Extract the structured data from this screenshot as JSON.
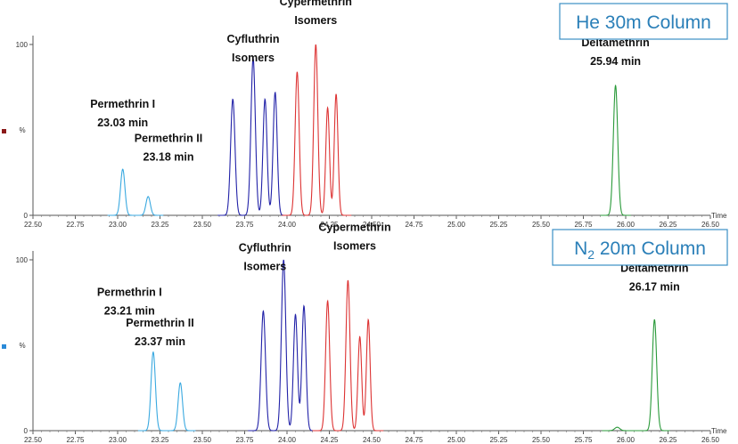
{
  "chart_data": [
    {
      "type": "line",
      "title": "He 30m Column",
      "xlabel": "Time",
      "ylabel": "%",
      "xlim": [
        22.5,
        26.5
      ],
      "ylim": [
        0,
        100
      ],
      "x_ticks": [
        "22.50",
        "22.75",
        "23.00",
        "23.25",
        "23.50",
        "23.75",
        "24.00",
        "24.25",
        "24.50",
        "24.75",
        "25.00",
        "25.25",
        "25.50",
        "25.75",
        "26.00",
        "26.25",
        "26.50"
      ],
      "y_ticks": [
        "0",
        "100"
      ],
      "marker_color": "#8b1a1a",
      "series": [
        {
          "color": "#3aa9e0",
          "peaks": [
            {
              "rt": 23.03,
              "height": 27,
              "width": 0.013
            },
            {
              "rt": 23.18,
              "height": 11,
              "width": 0.013
            }
          ]
        },
        {
          "color": "#2222a8",
          "peaks": [
            {
              "rt": 23.68,
              "height": 68,
              "width": 0.013
            },
            {
              "rt": 23.8,
              "height": 92,
              "width": 0.013
            },
            {
              "rt": 23.87,
              "height": 68,
              "width": 0.012
            },
            {
              "rt": 23.93,
              "height": 72,
              "width": 0.012
            }
          ]
        },
        {
          "color": "#dd3333",
          "peaks": [
            {
              "rt": 24.06,
              "height": 84,
              "width": 0.012
            },
            {
              "rt": 24.17,
              "height": 100,
              "width": 0.012
            },
            {
              "rt": 24.24,
              "height": 63,
              "width": 0.011
            },
            {
              "rt": 24.29,
              "height": 71,
              "width": 0.011
            }
          ]
        },
        {
          "color": "#2a9a3a",
          "peaks": [
            {
              "rt": 25.94,
              "height": 76,
              "width": 0.013
            }
          ]
        }
      ],
      "annotations": [
        {
          "lines": [
            "Permethrin I",
            "23.03 min"
          ],
          "x": 23.03,
          "y": 52
        },
        {
          "lines": [
            "Permethrin II",
            "23.18 min"
          ],
          "x": 23.3,
          "y": 32
        },
        {
          "lines": [
            "Cyfluthrin",
            "Isomers"
          ],
          "x": 23.8,
          "y": 90
        },
        {
          "lines": [
            "Cypermethrin",
            "Isomers"
          ],
          "x": 24.17,
          "y": 112
        },
        {
          "lines": [
            "Deltamethrin",
            "25.94 min"
          ],
          "x": 25.94,
          "y": 88
        }
      ]
    },
    {
      "type": "line",
      "title": "N",
      "title_sub": "2",
      "title_rest": " 20m Column",
      "xlabel": "Time",
      "ylabel": "%",
      "xlim": [
        22.5,
        26.5
      ],
      "ylim": [
        0,
        100
      ],
      "x_ticks": [
        "22.50",
        "22.75",
        "23.00",
        "23.25",
        "23.50",
        "23.75",
        "24.00",
        "24.25",
        "24.50",
        "24.75",
        "25.00",
        "25.25",
        "25.50",
        "25.75",
        "26.00",
        "26.25",
        "26.50"
      ],
      "y_ticks": [
        "0",
        "100"
      ],
      "marker_color": "#2a8ad8",
      "series": [
        {
          "color": "#3aa9e0",
          "peaks": [
            {
              "rt": 23.21,
              "height": 46,
              "width": 0.013
            },
            {
              "rt": 23.37,
              "height": 28,
              "width": 0.013
            }
          ]
        },
        {
          "color": "#2222a8",
          "peaks": [
            {
              "rt": 23.86,
              "height": 70,
              "width": 0.013
            },
            {
              "rt": 23.98,
              "height": 100,
              "width": 0.013
            },
            {
              "rt": 24.05,
              "height": 68,
              "width": 0.012
            },
            {
              "rt": 24.1,
              "height": 73,
              "width": 0.012
            }
          ]
        },
        {
          "color": "#dd3333",
          "peaks": [
            {
              "rt": 24.24,
              "height": 76,
              "width": 0.012
            },
            {
              "rt": 24.36,
              "height": 88,
              "width": 0.012
            },
            {
              "rt": 24.43,
              "height": 55,
              "width": 0.011
            },
            {
              "rt": 24.48,
              "height": 65,
              "width": 0.011
            }
          ]
        },
        {
          "color": "#2a9a3a",
          "peaks": [
            {
              "rt": 25.95,
              "height": 2,
              "width": 0.015
            },
            {
              "rt": 26.17,
              "height": 65,
              "width": 0.013
            }
          ]
        }
      ],
      "annotations": [
        {
          "lines": [
            "Permethrin I",
            "23.21 min"
          ],
          "x": 23.07,
          "y": 68
        },
        {
          "lines": [
            "Permethrin II",
            "23.37 min"
          ],
          "x": 23.25,
          "y": 50
        },
        {
          "lines": [
            "Cyfluthrin",
            "Isomers"
          ],
          "x": 23.87,
          "y": 94
        },
        {
          "lines": [
            "Cypermethrin",
            "Isomers"
          ],
          "x": 24.4,
          "y": 106
        },
        {
          "lines": [
            "Deltamethrin",
            "26.17 min"
          ],
          "x": 26.17,
          "y": 82
        }
      ]
    }
  ]
}
